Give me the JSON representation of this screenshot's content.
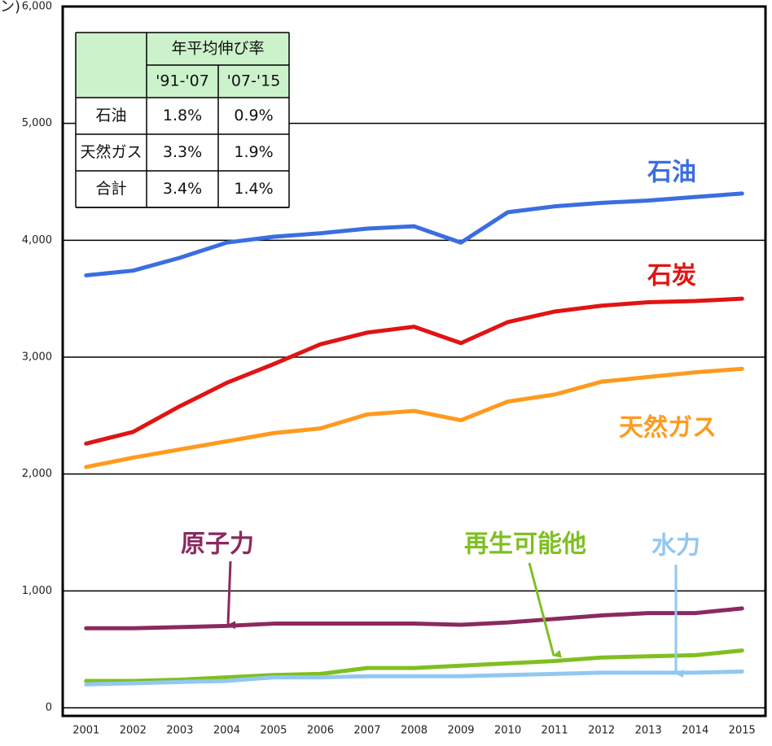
{
  "chart_data": {
    "type": "line",
    "y_axis_label": "ン)",
    "categories": [
      "2001",
      "2002",
      "2003",
      "2004",
      "2005",
      "2006",
      "2007",
      "2008",
      "2009",
      "2010",
      "2011",
      "2012",
      "2013",
      "2014",
      "2015"
    ],
    "series": [
      {
        "name": "石油",
        "color": "#3a6ee0",
        "values": [
          3700,
          3740,
          3850,
          3980,
          4030,
          4060,
          4100,
          4120,
          3980,
          4240,
          4290,
          4320,
          4340,
          4370,
          4400
        ]
      },
      {
        "name": "石炭",
        "color": "#e01414",
        "values": [
          2260,
          2360,
          2580,
          2780,
          2940,
          3110,
          3210,
          3260,
          3120,
          3300,
          3390,
          3440,
          3470,
          3480,
          3500
        ]
      },
      {
        "name": "天然ガス",
        "color": "#ff9a1e",
        "values": [
          2060,
          2140,
          2210,
          2280,
          2350,
          2390,
          2510,
          2540,
          2460,
          2620,
          2680,
          2790,
          2830,
          2870,
          2900
        ]
      },
      {
        "name": "原子力",
        "color": "#8a2a5e",
        "values": [
          680,
          680,
          690,
          700,
          720,
          720,
          720,
          720,
          710,
          730,
          760,
          790,
          810,
          810,
          850
        ]
      },
      {
        "name": "再生可能他",
        "color": "#7fbf22",
        "values": [
          230,
          230,
          240,
          260,
          280,
          290,
          340,
          340,
          360,
          380,
          400,
          430,
          440,
          450,
          490
        ]
      },
      {
        "name": "水力",
        "color": "#92c8f0",
        "values": [
          200,
          210,
          220,
          230,
          260,
          260,
          270,
          270,
          270,
          280,
          290,
          300,
          300,
          300,
          310
        ]
      }
    ],
    "ylim": [
      0,
      6000
    ],
    "yticks": [
      0,
      {
        "value": 1000,
        "label": "1,000"
      },
      {
        "value": 2000,
        "label": "2,000"
      },
      {
        "value": 3000,
        "label": "3,000"
      },
      {
        "value": 4000,
        "label": "4,000"
      },
      {
        "value": 5000,
        "label": "5,000"
      },
      {
        "value": 6000,
        "label": "6,000"
      }
    ],
    "grid": true
  },
  "table": {
    "header": "年平均伸び率",
    "columns": [
      "'91-'07",
      "'07-'15"
    ],
    "rows": [
      [
        "石油",
        "1.8%",
        "0.9%"
      ],
      [
        "天然ガス",
        "3.3%",
        "1.9%"
      ],
      [
        "合計",
        "3.4%",
        "1.4%"
      ]
    ]
  }
}
